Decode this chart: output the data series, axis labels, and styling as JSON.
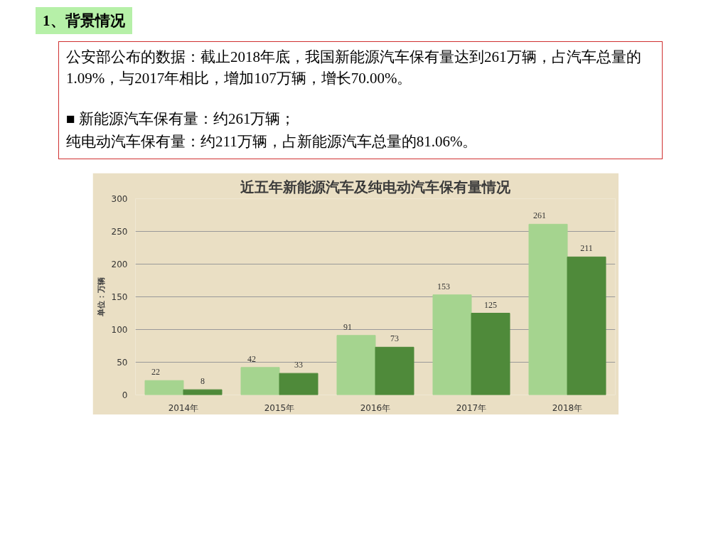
{
  "chart_data": {
    "type": "bar",
    "title": "近五年新能源汽车及纯电动汽车保有量情况",
    "ylabel": "单位：万辆",
    "annotations": [
      "1、背景情况",
      "公安部公布的数据：截止2018年底，我国新能源汽车保有量达到261万辆，占汽车总量的1.09%，与2017年相比，增加107万辆，增长70.00%。",
      "■ 新能源汽车保有量：约261万辆；",
      "纯电动汽车保有量：约211万辆，占新能源汽车总量的81.06%。"
    ],
    "categories": [
      "2014年",
      "2015年",
      "2016年",
      "2017年",
      "2018年"
    ],
    "series": [
      {
        "color": "#a5d48f",
        "values": [
          22,
          42,
          91,
          153,
          261
        ]
      },
      {
        "color": "#4f8a3a",
        "values": [
          8,
          33,
          73,
          125,
          211
        ]
      }
    ],
    "ylim": [
      0,
      300
    ],
    "yticks": [
      0,
      50,
      100,
      150,
      200,
      250,
      300
    ],
    "grid": "y",
    "data_labels": true
  }
}
